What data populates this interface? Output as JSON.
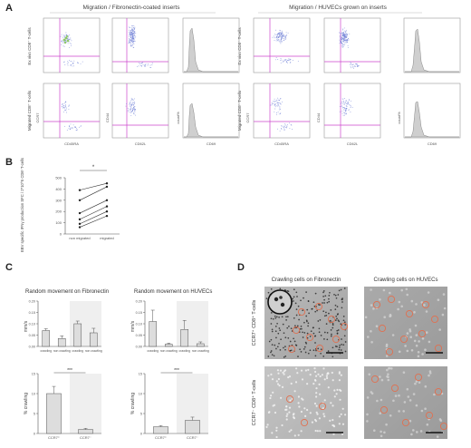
{
  "panels": {
    "A": {
      "letter": "A",
      "group_left_title": "Migration / Fibronectin-coated inserts",
      "group_right_title": "Migration / HUVECs grown on inserts",
      "row_top_label": "Ex vivo CD8⁺ T-cells",
      "row_bottom_label": "Migrated CD8⁺ T-cells",
      "axis_ccr7": "CCR7",
      "axis_cd45ra": "CD45RA",
      "axis_cd44": "CD44",
      "axis_cd62l": "CD62L",
      "axis_count": "count%",
      "axis_cd69": "CD69"
    },
    "B": {
      "letter": "B",
      "ylabel": "EBV specific IFNγ production SFC / 2*10^5 CD8⁺T-cells",
      "significance": "*",
      "chart_data": {
        "type": "line",
        "categories": [
          "non migrated",
          "migrated"
        ],
        "ylim": [
          0,
          500
        ],
        "yticks": [
          0,
          100,
          200,
          300,
          400,
          500
        ],
        "series": [
          {
            "values": [
              390,
              450
            ]
          },
          {
            "values": [
              300,
              420
            ]
          },
          {
            "values": [
              185,
              300
            ]
          },
          {
            "values": [
              130,
              245
            ]
          },
          {
            "values": [
              90,
              200
            ]
          },
          {
            "values": [
              60,
              160
            ]
          }
        ]
      }
    },
    "C": {
      "letter": "C",
      "left_title": "Random movement on Fibronectin",
      "right_title": "Random movement on HUVECs",
      "speed_ylabel": "mm/s",
      "pct_ylabel": "% crawling",
      "speed_left": {
        "type": "bar",
        "categories": [
          "crawling",
          "non crawling",
          "crawling",
          "non crawling"
        ],
        "values": [
          0.07,
          0.035,
          0.1,
          0.06
        ],
        "errors": [
          0.008,
          0.012,
          0.012,
          0.02
        ],
        "ylim": [
          0,
          0.2
        ],
        "yticks": [
          "0.00",
          "0.05",
          "0.10",
          "0.15",
          "0.20"
        ]
      },
      "speed_right": {
        "type": "bar",
        "categories": [
          "crawling",
          "non crawling",
          "crawling",
          "non crawling"
        ],
        "values": [
          0.11,
          0.01,
          0.075,
          0.012
        ],
        "errors": [
          0.05,
          0.005,
          0.04,
          0.008
        ],
        "ylim": [
          0,
          0.2
        ],
        "yticks": [
          "0.00",
          "0.05",
          "0.10",
          "0.15",
          "0.20"
        ]
      },
      "pct_left": {
        "type": "bar",
        "categories": [
          "CCR7",
          "CCR7"
        ],
        "category_marks": [
          "⁺",
          "⁻"
        ],
        "values": [
          10,
          1
        ],
        "errors": [
          1.8,
          0.3
        ],
        "ylim": [
          0,
          15
        ],
        "yticks": [
          "0",
          "5",
          "10",
          "15"
        ],
        "significance": "***"
      },
      "pct_right": {
        "type": "bar",
        "categories": [
          "CCR7",
          "CCR7"
        ],
        "category_marks": [
          "⁺",
          "⁻"
        ],
        "values": [
          1.7,
          3.3
        ],
        "errors": [
          0.3,
          0.8
        ],
        "ylim": [
          0,
          15
        ],
        "yticks": [
          "0",
          "5",
          "10",
          "15"
        ],
        "significance": "***"
      }
    },
    "D": {
      "letter": "D",
      "col_left_title": "Crawling cells on Fibronectin",
      "col_right_title": "Crawling cells on HUVECs",
      "row_top_label": "CCR7⁺ CD8⁺ T-cells",
      "row_bottom_label": "CCR7⁻ CD8⁺ T-cells"
    }
  },
  "colors": {
    "gate_line": "#cc44cc",
    "dot_blue": "#6f7fd6",
    "hist_fill": "#cfcfcf",
    "bar_fill": "#dddddd",
    "shade": "#efefef",
    "circle": "#e07050"
  }
}
